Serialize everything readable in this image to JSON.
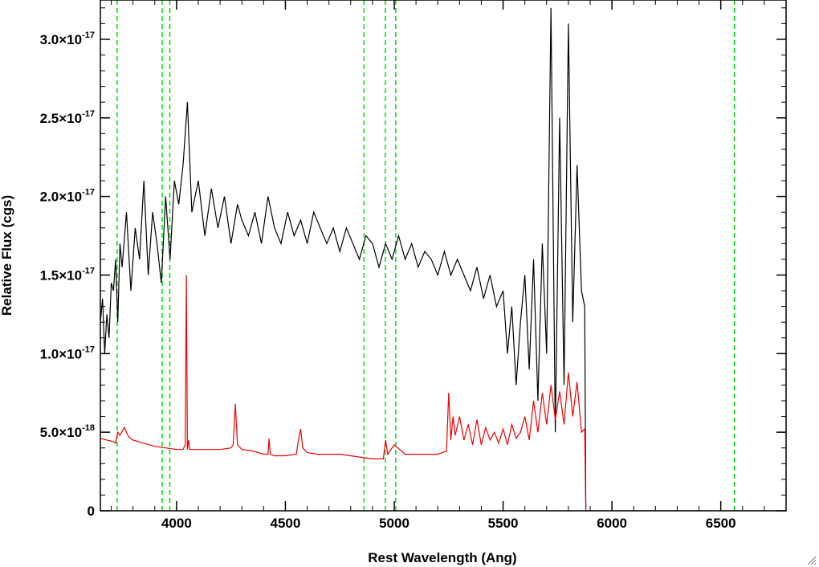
{
  "chart_data": {
    "type": "line",
    "xlabel": "Rest Wavelength (Ang)",
    "ylabel": "Relative Flux (cgs)",
    "xlim": [
      3650,
      6800
    ],
    "ylim": [
      0,
      3.25e-17
    ],
    "x_ticks": [
      4000,
      4500,
      5000,
      5500,
      6000,
      6500
    ],
    "x_tick_labels": [
      "4000",
      "4500",
      "5000",
      "5500",
      "6000",
      "6500"
    ],
    "y_ticks": [
      0,
      5e-18,
      1e-17,
      1.5e-17,
      2e-17,
      2.5e-17,
      3e-17
    ],
    "y_tick_labels": [
      {
        "mantissa": "0",
        "exponent": ""
      },
      {
        "mantissa": "5.0×10",
        "exponent": "-18"
      },
      {
        "mantissa": "1.0×10",
        "exponent": "-17"
      },
      {
        "mantissa": "1.5×10",
        "exponent": "-17"
      },
      {
        "mantissa": "2.0×10",
        "exponent": "-17"
      },
      {
        "mantissa": "2.5×10",
        "exponent": "-17"
      },
      {
        "mantissa": "3.0×10",
        "exponent": "-17"
      }
    ],
    "vertical_lines": {
      "color": "#00dd00",
      "style": "dashed",
      "x": [
        3727,
        3934,
        3969,
        4861,
        4959,
        5007,
        6563
      ]
    },
    "series": [
      {
        "color": "#000000",
        "x": [
          3650,
          3660,
          3670,
          3680,
          3690,
          3700,
          3710,
          3720,
          3730,
          3740,
          3750,
          3770,
          3790,
          3810,
          3830,
          3850,
          3870,
          3890,
          3910,
          3930,
          3950,
          3970,
          3990,
          4010,
          4030,
          4050,
          4070,
          4100,
          4130,
          4160,
          4190,
          4220,
          4250,
          4280,
          4300,
          4330,
          4360,
          4390,
          4420,
          4450,
          4480,
          4510,
          4540,
          4570,
          4600,
          4630,
          4660,
          4690,
          4720,
          4750,
          4780,
          4810,
          4840,
          4870,
          4900,
          4930,
          4960,
          4990,
          5020,
          5050,
          5080,
          5110,
          5140,
          5170,
          5200,
          5230,
          5260,
          5290,
          5320,
          5350,
          5380,
          5410,
          5440,
          5470,
          5500,
          5520,
          5540,
          5560,
          5580,
          5600,
          5620,
          5640,
          5660,
          5680,
          5700,
          5720,
          5740,
          5760,
          5780,
          5800,
          5820,
          5840,
          5860,
          5875,
          5880
        ],
        "y": [
          1.2e-17,
          1.35e-17,
          1e-17,
          1.25e-17,
          1.1e-17,
          1.45e-17,
          1.4e-17,
          1.6e-17,
          1.2e-17,
          1.7e-17,
          1.55e-17,
          1.9e-17,
          1.4e-17,
          1.8e-17,
          1.6e-17,
          2.1e-17,
          1.5e-17,
          1.9e-17,
          1.7e-17,
          1.45e-17,
          2e-17,
          1.6e-17,
          2.1e-17,
          1.95e-17,
          2.2e-17,
          2.6e-17,
          1.9e-17,
          2.1e-17,
          1.75e-17,
          2.05e-17,
          1.8e-17,
          2e-17,
          1.7e-17,
          1.95e-17,
          1.85e-17,
          1.75e-17,
          1.9e-17,
          1.7e-17,
          2e-17,
          1.8e-17,
          1.7e-17,
          1.9e-17,
          1.75e-17,
          1.85e-17,
          1.7e-17,
          1.9e-17,
          1.8e-17,
          1.7e-17,
          1.8e-17,
          1.65e-17,
          1.8e-17,
          1.7e-17,
          1.6e-17,
          1.75e-17,
          1.7e-17,
          1.55e-17,
          1.7e-17,
          1.6e-17,
          1.75e-17,
          1.6e-17,
          1.7e-17,
          1.55e-17,
          1.65e-17,
          1.6e-17,
          1.5e-17,
          1.65e-17,
          1.5e-17,
          1.6e-17,
          1.5e-17,
          1.4e-17,
          1.55e-17,
          1.35e-17,
          1.5e-17,
          1.3e-17,
          1.4e-17,
          1e-17,
          1.3e-17,
          8e-18,
          1.2e-17,
          1.5e-17,
          9e-18,
          1.6e-17,
          7e-18,
          1.7e-17,
          1e-17,
          3.2e-17,
          5e-18,
          2.5e-17,
          8e-18,
          3.1e-17,
          1.2e-17,
          2.2e-17,
          1.4e-17,
          1.3e-17,
          0
        ]
      },
      {
        "color": "#ee0000",
        "x": [
          3650,
          3680,
          3710,
          3720,
          3730,
          3740,
          3760,
          3780,
          3800,
          3850,
          3900,
          3950,
          4000,
          4030,
          4040,
          4045,
          4050,
          4055,
          4060,
          4100,
          4150,
          4200,
          4250,
          4260,
          4270,
          4275,
          4280,
          4300,
          4350,
          4400,
          4420,
          4425,
          4430,
          4450,
          4500,
          4550,
          4560,
          4570,
          4580,
          4600,
          4650,
          4700,
          4750,
          4800,
          4850,
          4900,
          4950,
          4960,
          4970,
          5000,
          5050,
          5100,
          5150,
          5200,
          5240,
          5250,
          5260,
          5270,
          5280,
          5300,
          5320,
          5340,
          5360,
          5380,
          5400,
          5420,
          5440,
          5460,
          5480,
          5500,
          5520,
          5540,
          5560,
          5580,
          5600,
          5620,
          5640,
          5660,
          5680,
          5700,
          5720,
          5740,
          5760,
          5780,
          5800,
          5820,
          5840,
          5860,
          5875,
          5880,
          5890,
          6000,
          6200,
          6400,
          6600,
          6800
        ],
        "y": [
          4.6e-18,
          4.5e-18,
          4.4e-18,
          4.3e-18,
          5e-18,
          4.8e-18,
          5.3e-18,
          4.7e-18,
          4.5e-18,
          4.3e-18,
          4.1e-18,
          4e-18,
          3.9e-18,
          3.9e-18,
          4.2e-18,
          1.5e-17,
          3.9e-18,
          4.5e-18,
          3.9e-18,
          3.9e-18,
          3.9e-18,
          3.9e-18,
          4e-18,
          4.2e-18,
          6.8e-18,
          5.5e-18,
          4.2e-18,
          3.9e-18,
          3.8e-18,
          3.6e-18,
          3.6e-18,
          4.6e-18,
          3.6e-18,
          3.5e-18,
          3.5e-18,
          3.6e-18,
          4.5e-18,
          5.2e-18,
          4e-18,
          3.7e-18,
          3.6e-18,
          3.6e-18,
          3.6e-18,
          3.5e-18,
          3.4e-18,
          3.3e-18,
          3.3e-18,
          4.5e-18,
          3.6e-18,
          4.2e-18,
          3.6e-18,
          3.6e-18,
          3.6e-18,
          3.6e-18,
          3.8e-18,
          7.5e-18,
          4.5e-18,
          6e-18,
          4.8e-18,
          6e-18,
          4.5e-18,
          5.5e-18,
          4.2e-18,
          5.8e-18,
          4.2e-18,
          5.3e-18,
          4.5e-18,
          5e-18,
          4.3e-18,
          5.2e-18,
          4.2e-18,
          5.5e-18,
          4.6e-18,
          5e-18,
          6e-18,
          4.5e-18,
          7e-18,
          5e-18,
          7.5e-18,
          5.5e-18,
          8e-18,
          5.8e-18,
          7.6e-18,
          5.5e-18,
          8.8e-18,
          6e-18,
          8.2e-18,
          5e-18,
          5.2e-18,
          0,
          0,
          0,
          0,
          0,
          0,
          0
        ]
      }
    ]
  }
}
